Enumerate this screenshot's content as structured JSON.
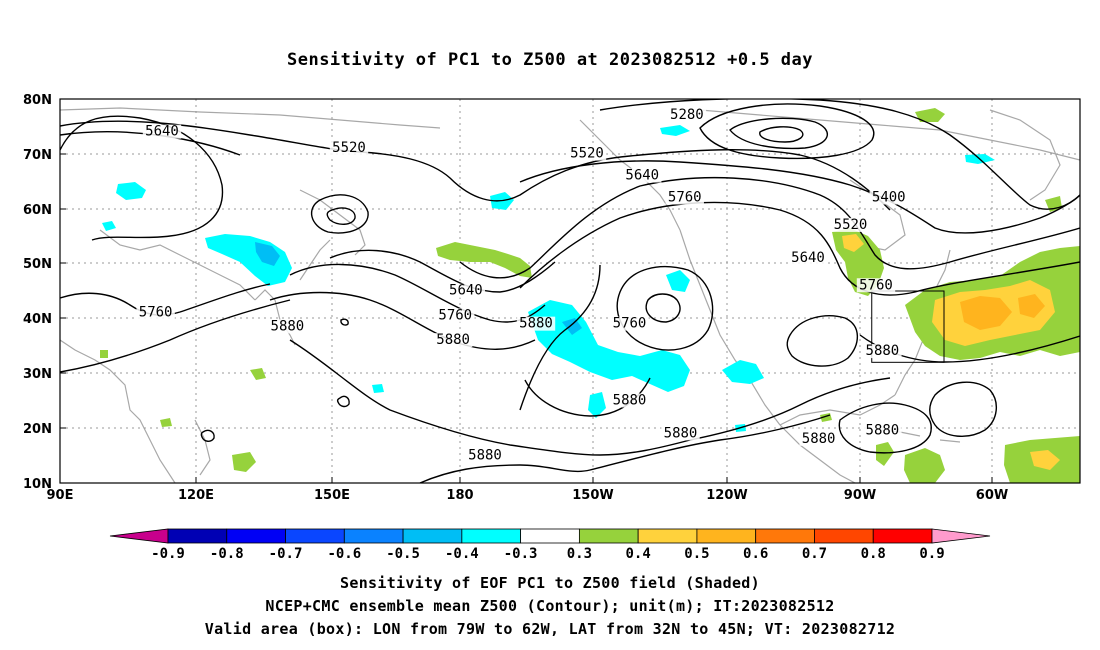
{
  "title": "Sensitivity of PC1 to Z500 at 2023082512 +0.5 day",
  "map": {
    "lat_labels": [
      "80N",
      "70N",
      "60N",
      "50N",
      "40N",
      "30N",
      "20N",
      "10N"
    ],
    "lon_labels": [
      "90E",
      "120E",
      "150E",
      "180",
      "150W",
      "120W",
      "90W",
      "60W"
    ],
    "contour_labels": [
      {
        "text": "5640",
        "lon": 114,
        "lat": 73.5
      },
      {
        "text": "5520",
        "lon": 158,
        "lat": 70.5
      },
      {
        "text": "5280",
        "lon": 237.5,
        "lat": 76.5
      },
      {
        "text": "5520",
        "lon": 214,
        "lat": 69.5
      },
      {
        "text": "5640",
        "lon": 227,
        "lat": 65.5
      },
      {
        "text": "5760",
        "lon": 237,
        "lat": 61.5
      },
      {
        "text": "5400",
        "lon": 285,
        "lat": 61.5
      },
      {
        "text": "5520",
        "lon": 276,
        "lat": 56.5
      },
      {
        "text": "5640",
        "lon": 266,
        "lat": 50.5
      },
      {
        "text": "5760",
        "lon": 282,
        "lat": 45.5
      },
      {
        "text": "5640",
        "lon": 185.5,
        "lat": 44.5
      },
      {
        "text": "5760",
        "lon": 183,
        "lat": 40
      },
      {
        "text": "5880",
        "lon": 182.5,
        "lat": 35.5
      },
      {
        "text": "5880",
        "lon": 202,
        "lat": 38.5
      },
      {
        "text": "5760",
        "lon": 224,
        "lat": 38.5
      },
      {
        "text": "5760",
        "lon": 112.5,
        "lat": 40.5
      },
      {
        "text": "5880",
        "lon": 143.5,
        "lat": 38
      },
      {
        "text": "5880",
        "lon": 283.5,
        "lat": 33.5
      },
      {
        "text": "5880",
        "lon": 224,
        "lat": 24.5
      },
      {
        "text": "5880",
        "lon": 236,
        "lat": 18.5
      },
      {
        "text": "5880",
        "lon": 268.5,
        "lat": 17.5
      },
      {
        "text": "5880",
        "lon": 283.5,
        "lat": 19
      },
      {
        "text": "5880",
        "lon": 190,
        "lat": 14.5
      }
    ],
    "valid_box": {
      "lon_min": 281,
      "lon_max": 298,
      "lat_min": 32,
      "lat_max": 45
    }
  },
  "colorbar": {
    "labels": [
      "-0.9",
      "-0.8",
      "-0.7",
      "-0.6",
      "-0.5",
      "-0.4",
      "-0.3",
      "0.3",
      "0.4",
      "0.5",
      "0.6",
      "0.7",
      "0.8",
      "0.9"
    ],
    "colors": [
      "#0000b4",
      "#0000f5",
      "#0a46ff",
      "#0a82ff",
      "#00bef5",
      "#00ffff",
      "#ffffff",
      "#96d23c",
      "#ffd23c",
      "#ffb41e",
      "#ff780a",
      "#ff4600",
      "#ff0000"
    ],
    "low_end_color": "#c8008c",
    "high_end_color": "#ff9bcd"
  },
  "captions": {
    "line1": "Sensitivity of EOF PC1 to Z500 field (Shaded)",
    "line2": "NCEP+CMC ensemble mean Z500 (Contour); unit(m); IT:2023082512",
    "line3": "Valid area (box): LON from 79W to 62W, LAT from 32N to 45N; VT: 2023082712"
  }
}
